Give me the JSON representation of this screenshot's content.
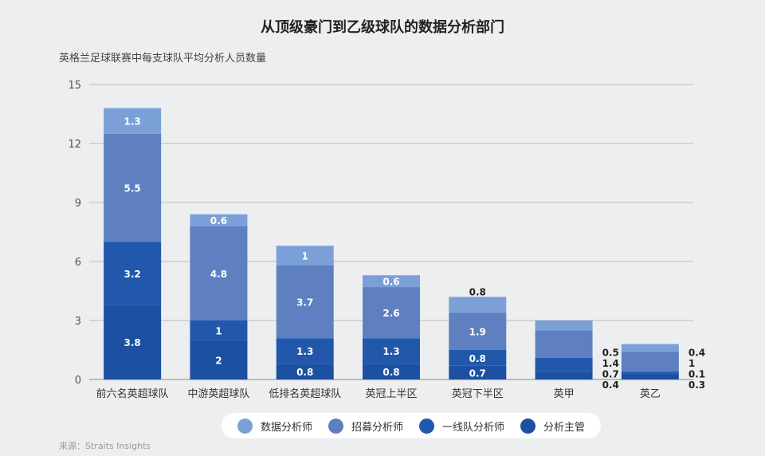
{
  "chart_data": {
    "type": "bar",
    "stacked": true,
    "title": "从顶级豪门到乙级球队的数据分析部门",
    "subtitle": "英格兰足球联赛中每支球队平均分析人员数量",
    "source": "来源：Straits Insights",
    "categories": [
      "前六名英超球队",
      "中游英超球队",
      "低排名英超球队",
      "英冠上半区",
      "英冠下半区",
      "英甲",
      "英乙"
    ],
    "series": [
      {
        "name": "分析主管",
        "color": "#1c50a3",
        "values": [
          3.8,
          2,
          0.8,
          0.8,
          0.7,
          0.4,
          0.3
        ]
      },
      {
        "name": "一线队分析师",
        "color": "#2158ab",
        "values": [
          3.2,
          1,
          1.3,
          1.3,
          0.8,
          0.7,
          0.1
        ]
      },
      {
        "name": "招募分析师",
        "color": "#5e80c0",
        "values": [
          5.5,
          4.8,
          3.7,
          2.6,
          1.9,
          1.4,
          1
        ]
      },
      {
        "name": "数据分析师",
        "color": "#7ba0d8",
        "values": [
          1.3,
          0.6,
          1,
          0.6,
          0.8,
          0.5,
          0.4
        ]
      }
    ],
    "legend_order": [
      "数据分析师",
      "招募分析师",
      "一线队分析师",
      "分析主管"
    ],
    "ylim": [
      0,
      15
    ],
    "yticks": [
      0,
      3,
      6,
      9,
      12,
      15
    ],
    "grid": true,
    "legend": "bottom"
  }
}
